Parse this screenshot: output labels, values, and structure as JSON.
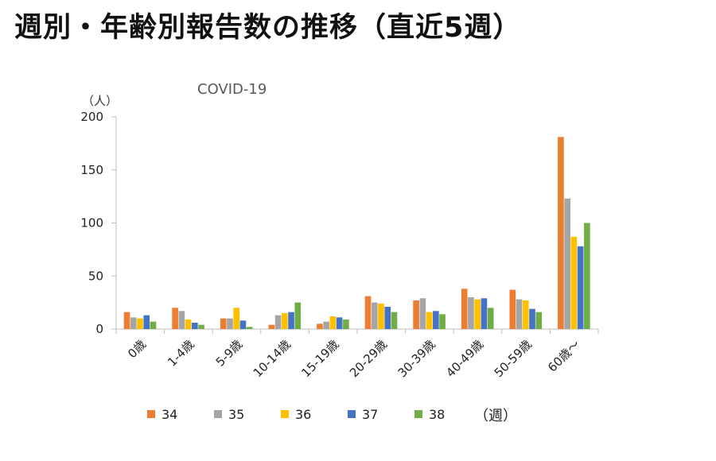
{
  "page": {
    "title": "週別・年齢別報告数の推移（直近5週）"
  },
  "chart_data": {
    "type": "bar",
    "subtitle": "COVID-19",
    "ylabel": "（人）",
    "legend_unit": "（週）",
    "legend_position": "bottom",
    "grid": false,
    "ylim": [
      0,
      200
    ],
    "yticks": [
      0,
      50,
      100,
      150,
      200
    ],
    "categories": [
      "0歳",
      "1-4歳",
      "5-9歳",
      "10-14歳",
      "15-19歳",
      "20-29歳",
      "30-39歳",
      "40-49歳",
      "50-59歳",
      "60歳～"
    ],
    "series": [
      {
        "name": "34",
        "color": "#ED7D31",
        "values": [
          16,
          20,
          10,
          4,
          5,
          31,
          27,
          38,
          37,
          181
        ]
      },
      {
        "name": "35",
        "color": "#A5A5A5",
        "values": [
          11,
          17,
          10,
          13,
          7,
          25,
          29,
          30,
          28,
          123
        ]
      },
      {
        "name": "36",
        "color": "#FFC000",
        "values": [
          10,
          9,
          20,
          15,
          12,
          24,
          16,
          28,
          27,
          87
        ]
      },
      {
        "name": "37",
        "color": "#4472C4",
        "values": [
          13,
          6,
          8,
          16,
          11,
          21,
          17,
          29,
          19,
          78
        ]
      },
      {
        "name": "38",
        "color": "#70AD47",
        "values": [
          7,
          4,
          2,
          25,
          9,
          16,
          14,
          20,
          16,
          100
        ]
      }
    ]
  }
}
